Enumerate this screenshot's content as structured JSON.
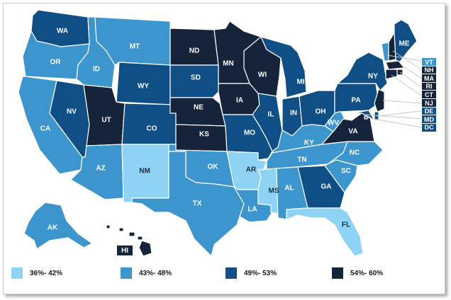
{
  "colors": {
    "bin1": "#8fd3f4",
    "bin2": "#3c96cd",
    "bin3": "#0f4f86",
    "bin4": "#16243b"
  },
  "legend": [
    {
      "label": "36%- 42%",
      "color": "#8fd3f4"
    },
    {
      "label": "43%- 48%",
      "color": "#3c96cd"
    },
    {
      "label": "49%- 53%",
      "color": "#0f4f86"
    },
    {
      "label": "54%- 60%",
      "color": "#16243b"
    }
  ],
  "states": {
    "WA": "49%- 53%",
    "OR": "43%- 48%",
    "CA": "43%- 48%",
    "NV": "49%- 53%",
    "ID": "43%- 48%",
    "MT": "43%- 48%",
    "WY": "49%- 53%",
    "UT": "54%- 60%",
    "AZ": "43%- 48%",
    "NM": "36%- 42%",
    "CO": "49%- 53%",
    "ND": "54%- 60%",
    "SD": "49%- 53%",
    "NE": "54%- 60%",
    "KS": "54%- 60%",
    "OK": "43%- 48%",
    "TX": "43%- 48%",
    "MN": "54%- 60%",
    "IA": "54%- 60%",
    "MO": "49%- 53%",
    "AR": "36%- 42%",
    "LA": "43%- 48%",
    "WI": "54%- 60%",
    "IL": "49%- 53%",
    "MS": "36%- 42%",
    "MI": "49%- 53%",
    "IN": "49%- 53%",
    "OH": "49%- 53%",
    "KY": "43%- 48%",
    "TN": "43%- 48%",
    "AL": "43%- 48%",
    "GA": "49%- 53%",
    "FL": "36%- 42%",
    "SC": "43%- 48%",
    "NC": "43%- 48%",
    "VA": "54%- 60%",
    "WV": "43%- 48%",
    "PA": "49%- 53%",
    "NY": "49%- 53%",
    "ME": "49%- 53%",
    "AK": "43%- 48%",
    "HI": "54%- 60%",
    "VT": "43%- 48%",
    "NH": "54%- 60%",
    "MA": "54%- 60%",
    "RI": "54%- 60%",
    "CT": "54%- 60%",
    "NJ": "54%- 60%",
    "DE": "49%- 53%",
    "MD": "49%- 53%",
    "DC": "49%- 53%"
  },
  "small_state_labels": [
    "VT",
    "NH",
    "MA",
    "RI",
    "CT",
    "NJ",
    "DE",
    "MD",
    "DC"
  ]
}
